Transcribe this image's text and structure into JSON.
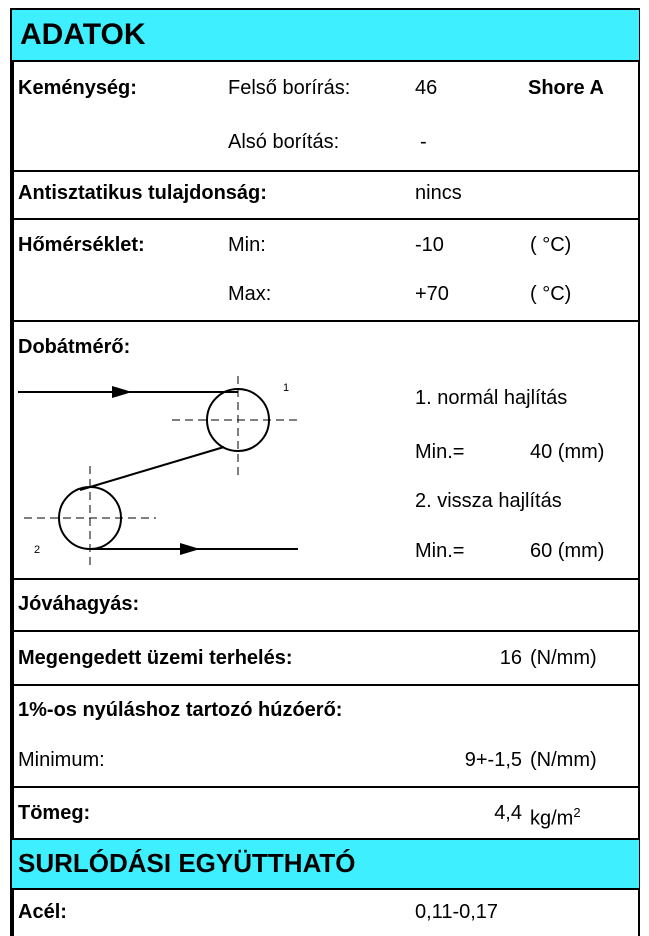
{
  "header": {
    "title": "ADATOK"
  },
  "hardness": {
    "label": "Keménység:",
    "upper_label": "Felső borírás:",
    "upper_value": "46",
    "unit": "Shore A",
    "lower_label": "Alsó borítás:",
    "lower_value": "-"
  },
  "antistatic": {
    "label": "Antisztatikus tulajdonság:",
    "value": "nincs"
  },
  "temperature": {
    "label": "Hőmérséklet:",
    "min_label": "Min:",
    "min_value": "-10",
    "min_unit": "( °C)",
    "max_label": "Max:",
    "max_value": "+70",
    "max_unit": "( °C)"
  },
  "drum": {
    "label": "Dobátmérő:",
    "diagram_label_1": "1",
    "diagram_label_2": "2",
    "bend1": "1. normál hajlítás",
    "min1_label": "Min.=",
    "min1_value": "40 (mm)",
    "bend2": "2. vissza hajlítás",
    "min2_label": "Min.=",
    "min2_value": "60 (mm)"
  },
  "approval": {
    "label": "Jóváhagyás:"
  },
  "load": {
    "label": "Megengedett üzemi terhelés:",
    "value": "16",
    "unit": "(N/mm)"
  },
  "tension": {
    "label": "1%-os nyúláshoz tartozó húzóerő:",
    "min_label": "Minimum:",
    "value": "9+-1,5",
    "unit": "(N/mm)"
  },
  "mass": {
    "label": "Tömeg:",
    "value": "4,4",
    "unit": "kg/m",
    "unit_exp": "2"
  },
  "friction": {
    "title": "SURLÓDÁSI EGYÜTTHATÓ",
    "steel_label": "Acél:",
    "steel_value": "0,11-0,17"
  }
}
